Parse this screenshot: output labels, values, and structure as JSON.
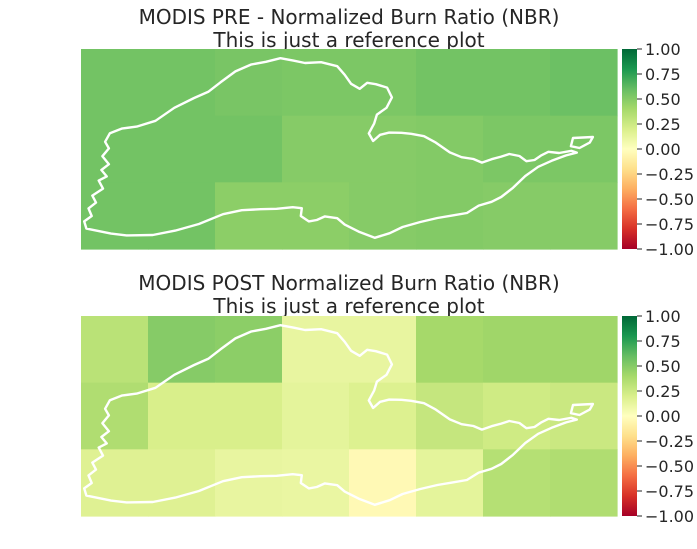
{
  "colormap": {
    "name": "RdYlGn",
    "stops": [
      "#a50026",
      "#d73027",
      "#f46d43",
      "#fdae61",
      "#fee08b",
      "#ffffbf",
      "#d9ef8b",
      "#a6d96a",
      "#66bd63",
      "#1a9850",
      "#006837"
    ]
  },
  "outline_color": "#ffffff",
  "chart_data": [
    {
      "type": "heatmap",
      "title": "MODIS PRE - Normalized Burn Ratio (NBR)",
      "subtitle": "This is just a reference plot",
      "vmin": -1.0,
      "vmax": 1.0,
      "colorbar_ticks": [
        "1.00",
        "0.75",
        "0.50",
        "0.25",
        "0.00",
        "−0.25",
        "−0.50",
        "−0.75",
        "−1.00"
      ],
      "grid": false,
      "values": [
        [
          0.56,
          0.56,
          0.54,
          0.53,
          0.53,
          0.56,
          0.56,
          0.58
        ],
        [
          0.56,
          0.56,
          0.56,
          0.5,
          0.5,
          0.51,
          0.53,
          0.53
        ],
        [
          0.56,
          0.56,
          0.48,
          0.48,
          0.5,
          0.51,
          0.5,
          0.5
        ]
      ]
    },
    {
      "type": "heatmap",
      "title": "MODIS POST Normalized Burn Ratio (NBR)",
      "subtitle": "This is just a reference plot",
      "vmin": -1.0,
      "vmax": 1.0,
      "colorbar_ticks": [
        "1.00",
        "0.75",
        "0.50",
        "0.25",
        "0.00",
        "−0.25",
        "−0.50",
        "−0.75",
        "−1.00"
      ],
      "grid": false,
      "values": [
        [
          0.32,
          0.5,
          0.48,
          0.12,
          0.12,
          0.4,
          0.42,
          0.42
        ],
        [
          0.36,
          0.2,
          0.2,
          0.14,
          0.18,
          0.28,
          0.24,
          0.26
        ],
        [
          0.17,
          0.17,
          0.12,
          0.11,
          -0.04,
          0.14,
          0.34,
          0.36
        ]
      ]
    }
  ]
}
